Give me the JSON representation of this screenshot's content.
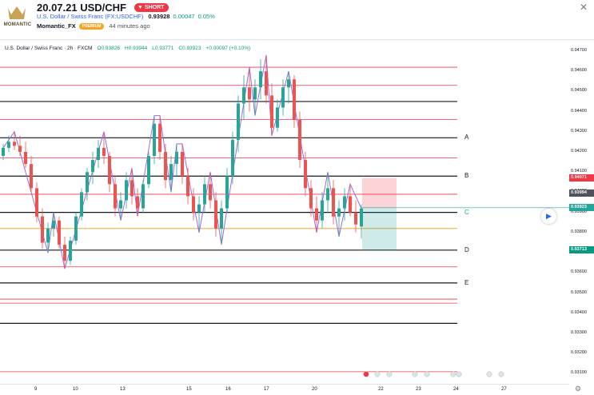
{
  "header": {
    "logo_text": "MOMANTIC",
    "title": "20.07.21 USD/CHF",
    "badge": "SHORT",
    "symbol_link": "U.S. Dollar / Swiss Franc (FX:USDCHF)",
    "price": "0.93928",
    "change": "0.00047",
    "change_pct": "0.05%",
    "author": "Momantic_FX",
    "author_badge": "PREMIUM",
    "time_ago": "44 minutes ago"
  },
  "legend": {
    "symbol": "U.S. Dollar / Swiss Franc · 2h · FXCM",
    "o": "O0.93826",
    "h": "H0.93944",
    "l": "L0.93771",
    "c": "C0.93923",
    "chg": "+0.00097 (+0.10%)"
  },
  "chart_data": {
    "type": "candlestick",
    "y_ticks": [
      "0.94700",
      "0.94600",
      "0.94500",
      "0.94400",
      "0.94300",
      "0.94200",
      "0.94100",
      "0.94000",
      "0.93900",
      "0.93800",
      "0.93700",
      "0.93600",
      "0.93500",
      "0.93400",
      "0.93300",
      "0.93200",
      "0.93100"
    ],
    "x_ticks": [
      "9",
      "10",
      "13",
      "15",
      "16",
      "17",
      "20",
      "22",
      "23",
      "24",
      "27"
    ],
    "ylim": [
      0.9305,
      0.94755
    ],
    "price_tags": [
      {
        "value": "0.94071",
        "color": "#f23645"
      },
      {
        "value": "0.93994",
        "color": "#50535e"
      },
      {
        "value": "0.93923",
        "color": "#26a69a"
      },
      {
        "value": "0.93713",
        "color": "#089981"
      }
    ],
    "level_labels": [
      {
        "label": "A",
        "value": 0.9427
      },
      {
        "label": "B",
        "value": 0.9408
      },
      {
        "label": "C",
        "value": 0.939
      },
      {
        "label": "D",
        "value": 0.93713
      },
      {
        "label": "E",
        "value": 0.9355
      }
    ],
    "black_levels": [
      0.9445,
      0.9427,
      0.9408,
      0.939,
      0.93713,
      0.9355,
      0.9335
    ],
    "red_levels": [
      0.9462,
      0.9453,
      0.9436,
      0.9417,
      0.9399,
      0.9363,
      0.9347,
      0.9345,
      0.9311
    ],
    "orange_level": 0.9382,
    "candles": [
      [
        0.9418,
        0.9424,
        0.9416,
        0.9422
      ],
      [
        0.9422,
        0.9428,
        0.942,
        0.9425
      ],
      [
        0.9425,
        0.943,
        0.9421,
        0.9423
      ],
      [
        0.9423,
        0.9428,
        0.9418,
        0.942
      ],
      [
        0.942,
        0.9425,
        0.9412,
        0.9414
      ],
      [
        0.9414,
        0.9418,
        0.94,
        0.9402
      ],
      [
        0.9402,
        0.9405,
        0.9385,
        0.9388
      ],
      [
        0.9388,
        0.9392,
        0.9372,
        0.9375
      ],
      [
        0.9375,
        0.9385,
        0.937,
        0.9382
      ],
      [
        0.9382,
        0.939,
        0.9378,
        0.9386
      ],
      [
        0.9386,
        0.9388,
        0.9372,
        0.9374
      ],
      [
        0.9374,
        0.9378,
        0.9362,
        0.9366
      ],
      [
        0.9366,
        0.9378,
        0.9364,
        0.9376
      ],
      [
        0.9376,
        0.939,
        0.9374,
        0.9388
      ],
      [
        0.9388,
        0.9402,
        0.9386,
        0.94
      ],
      [
        0.94,
        0.9412,
        0.9396,
        0.941
      ],
      [
        0.941,
        0.942,
        0.9404,
        0.9416
      ],
      [
        0.9416,
        0.9426,
        0.9412,
        0.9422
      ],
      [
        0.9422,
        0.943,
        0.9414,
        0.9418
      ],
      [
        0.9418,
        0.942,
        0.94,
        0.9404
      ],
      [
        0.9404,
        0.9408,
        0.9388,
        0.9392
      ],
      [
        0.9392,
        0.94,
        0.9386,
        0.9396
      ],
      [
        0.9396,
        0.941,
        0.9392,
        0.9406
      ],
      [
        0.9406,
        0.9412,
        0.9394,
        0.9398
      ],
      [
        0.9398,
        0.9402,
        0.9388,
        0.9392
      ],
      [
        0.9392,
        0.9406,
        0.939,
        0.9404
      ],
      [
        0.9404,
        0.942,
        0.9402,
        0.9418
      ],
      [
        0.9418,
        0.9438,
        0.9414,
        0.9434
      ],
      [
        0.9434,
        0.9438,
        0.9416,
        0.942
      ],
      [
        0.942,
        0.9424,
        0.9402,
        0.9406
      ],
      [
        0.9406,
        0.9418,
        0.94,
        0.9414
      ],
      [
        0.9414,
        0.9424,
        0.9408,
        0.942
      ],
      [
        0.942,
        0.9424,
        0.9404,
        0.9408
      ],
      [
        0.9408,
        0.9412,
        0.9394,
        0.9398
      ],
      [
        0.9398,
        0.9402,
        0.9386,
        0.939
      ],
      [
        0.939,
        0.9398,
        0.938,
        0.9394
      ],
      [
        0.9394,
        0.9408,
        0.939,
        0.9404
      ],
      [
        0.9404,
        0.941,
        0.9392,
        0.9396
      ],
      [
        0.9396,
        0.94,
        0.9378,
        0.9382
      ],
      [
        0.9382,
        0.9396,
        0.9374,
        0.9392
      ],
      [
        0.9392,
        0.9412,
        0.939,
        0.9408
      ],
      [
        0.9408,
        0.943,
        0.9404,
        0.9426
      ],
      [
        0.9426,
        0.9448,
        0.942,
        0.9444
      ],
      [
        0.9444,
        0.9458,
        0.9436,
        0.9452
      ],
      [
        0.9452,
        0.9462,
        0.944,
        0.9446
      ],
      [
        0.9446,
        0.9456,
        0.9438,
        0.9452
      ],
      [
        0.9452,
        0.9466,
        0.9446,
        0.946
      ],
      [
        0.946,
        0.9468,
        0.9444,
        0.9448
      ],
      [
        0.9448,
        0.9454,
        0.9428,
        0.9432
      ],
      [
        0.9432,
        0.9446,
        0.943,
        0.9442
      ],
      [
        0.9442,
        0.9456,
        0.9438,
        0.9452
      ],
      [
        0.9452,
        0.946,
        0.9444,
        0.9456
      ],
      [
        0.9456,
        0.9458,
        0.9432,
        0.9436
      ],
      [
        0.9436,
        0.944,
        0.9412,
        0.9416
      ],
      [
        0.9416,
        0.942,
        0.9398,
        0.9402
      ],
      [
        0.9402,
        0.9406,
        0.9388,
        0.9392
      ],
      [
        0.9392,
        0.9398,
        0.938,
        0.9386
      ],
      [
        0.9386,
        0.94,
        0.9382,
        0.9396
      ],
      [
        0.9396,
        0.941,
        0.939,
        0.9402
      ],
      [
        0.9402,
        0.9406,
        0.9384,
        0.9388
      ],
      [
        0.9388,
        0.9396,
        0.9378,
        0.9392
      ],
      [
        0.9392,
        0.9402,
        0.9386,
        0.9398
      ],
      [
        0.9398,
        0.9404,
        0.9388,
        0.939
      ],
      [
        0.939,
        0.9396,
        0.938,
        0.9384
      ],
      [
        0.9383,
        0.9394,
        0.9377,
        0.9392
      ]
    ],
    "target_zone": {
      "entry": 0.93923,
      "stop": 0.94071,
      "target": 0.93713
    }
  },
  "colors": {
    "bull": "#26a69a",
    "bear": "#ef5350",
    "zigzag": "#9c6ade",
    "black_level": "#131722",
    "red_level": "#f23645",
    "orange_level": "#f7a325"
  },
  "bottom_events": "events",
  "icons": {
    "play": "play-icon",
    "settings": "gear-icon",
    "close": "close-icon"
  }
}
